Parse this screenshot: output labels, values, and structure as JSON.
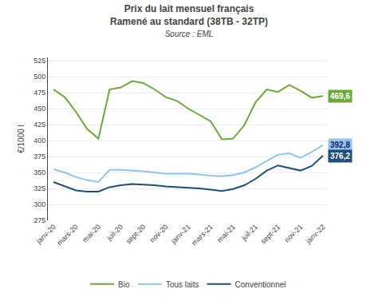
{
  "chart_data": {
    "type": "line",
    "title": "Prix du lait mensuel français\nRamené au standard (38TB - 32TP)",
    "subtitle": "Source : EML",
    "y_label": "€/1000 l",
    "categories": [
      "janv-20",
      null,
      "mars-20",
      null,
      "mai-20",
      null,
      "juil-20",
      null,
      "sept-20",
      null,
      "nov-20",
      null,
      "janv-21",
      null,
      "mars-21",
      null,
      "mai-21",
      null,
      "juil-21",
      null,
      "sept-21",
      null,
      "nov-21",
      null,
      "janv-22"
    ],
    "series": [
      {
        "name": "Bio",
        "color": "#6aaa3a",
        "values": [
          480,
          468,
          445,
          418,
          403,
          480,
          483,
          493,
          490,
          480,
          468,
          462,
          450,
          440,
          430,
          402,
          403,
          424,
          460,
          480,
          476,
          487,
          478,
          467,
          469.6
        ]
      },
      {
        "name": "Tous laits",
        "color": "#92c5e8",
        "values": [
          355,
          350,
          343,
          338,
          335,
          354,
          354,
          353,
          352,
          350,
          348,
          348,
          348,
          347,
          345,
          344,
          346,
          350,
          358,
          368,
          378,
          380,
          373,
          382,
          392.8
        ]
      },
      {
        "name": "Conventionnel",
        "color": "#1f4e79",
        "values": [
          335,
          328,
          322,
          320,
          320,
          327,
          330,
          332,
          331,
          330,
          328,
          327,
          326,
          325,
          323,
          321,
          324,
          330,
          340,
          353,
          361,
          357,
          353,
          360,
          376.2
        ]
      }
    ],
    "annotations": [
      {
        "text": "469,6",
        "x": "janv-22",
        "y": 469.6,
        "color": "#6aaa3a"
      },
      {
        "text": "392,8",
        "x": "janv-22",
        "y": 392.8,
        "color": "#92c5e8"
      },
      {
        "text": "376,2",
        "x": "janv-22",
        "y": 376.2,
        "color": "#1f4e79"
      }
    ],
    "ylim": [
      275,
      530
    ],
    "yticks": [
      275,
      300,
      325,
      350,
      375,
      400,
      425,
      450,
      475,
      500,
      525
    ],
    "grid": true,
    "legend": "bottom"
  }
}
